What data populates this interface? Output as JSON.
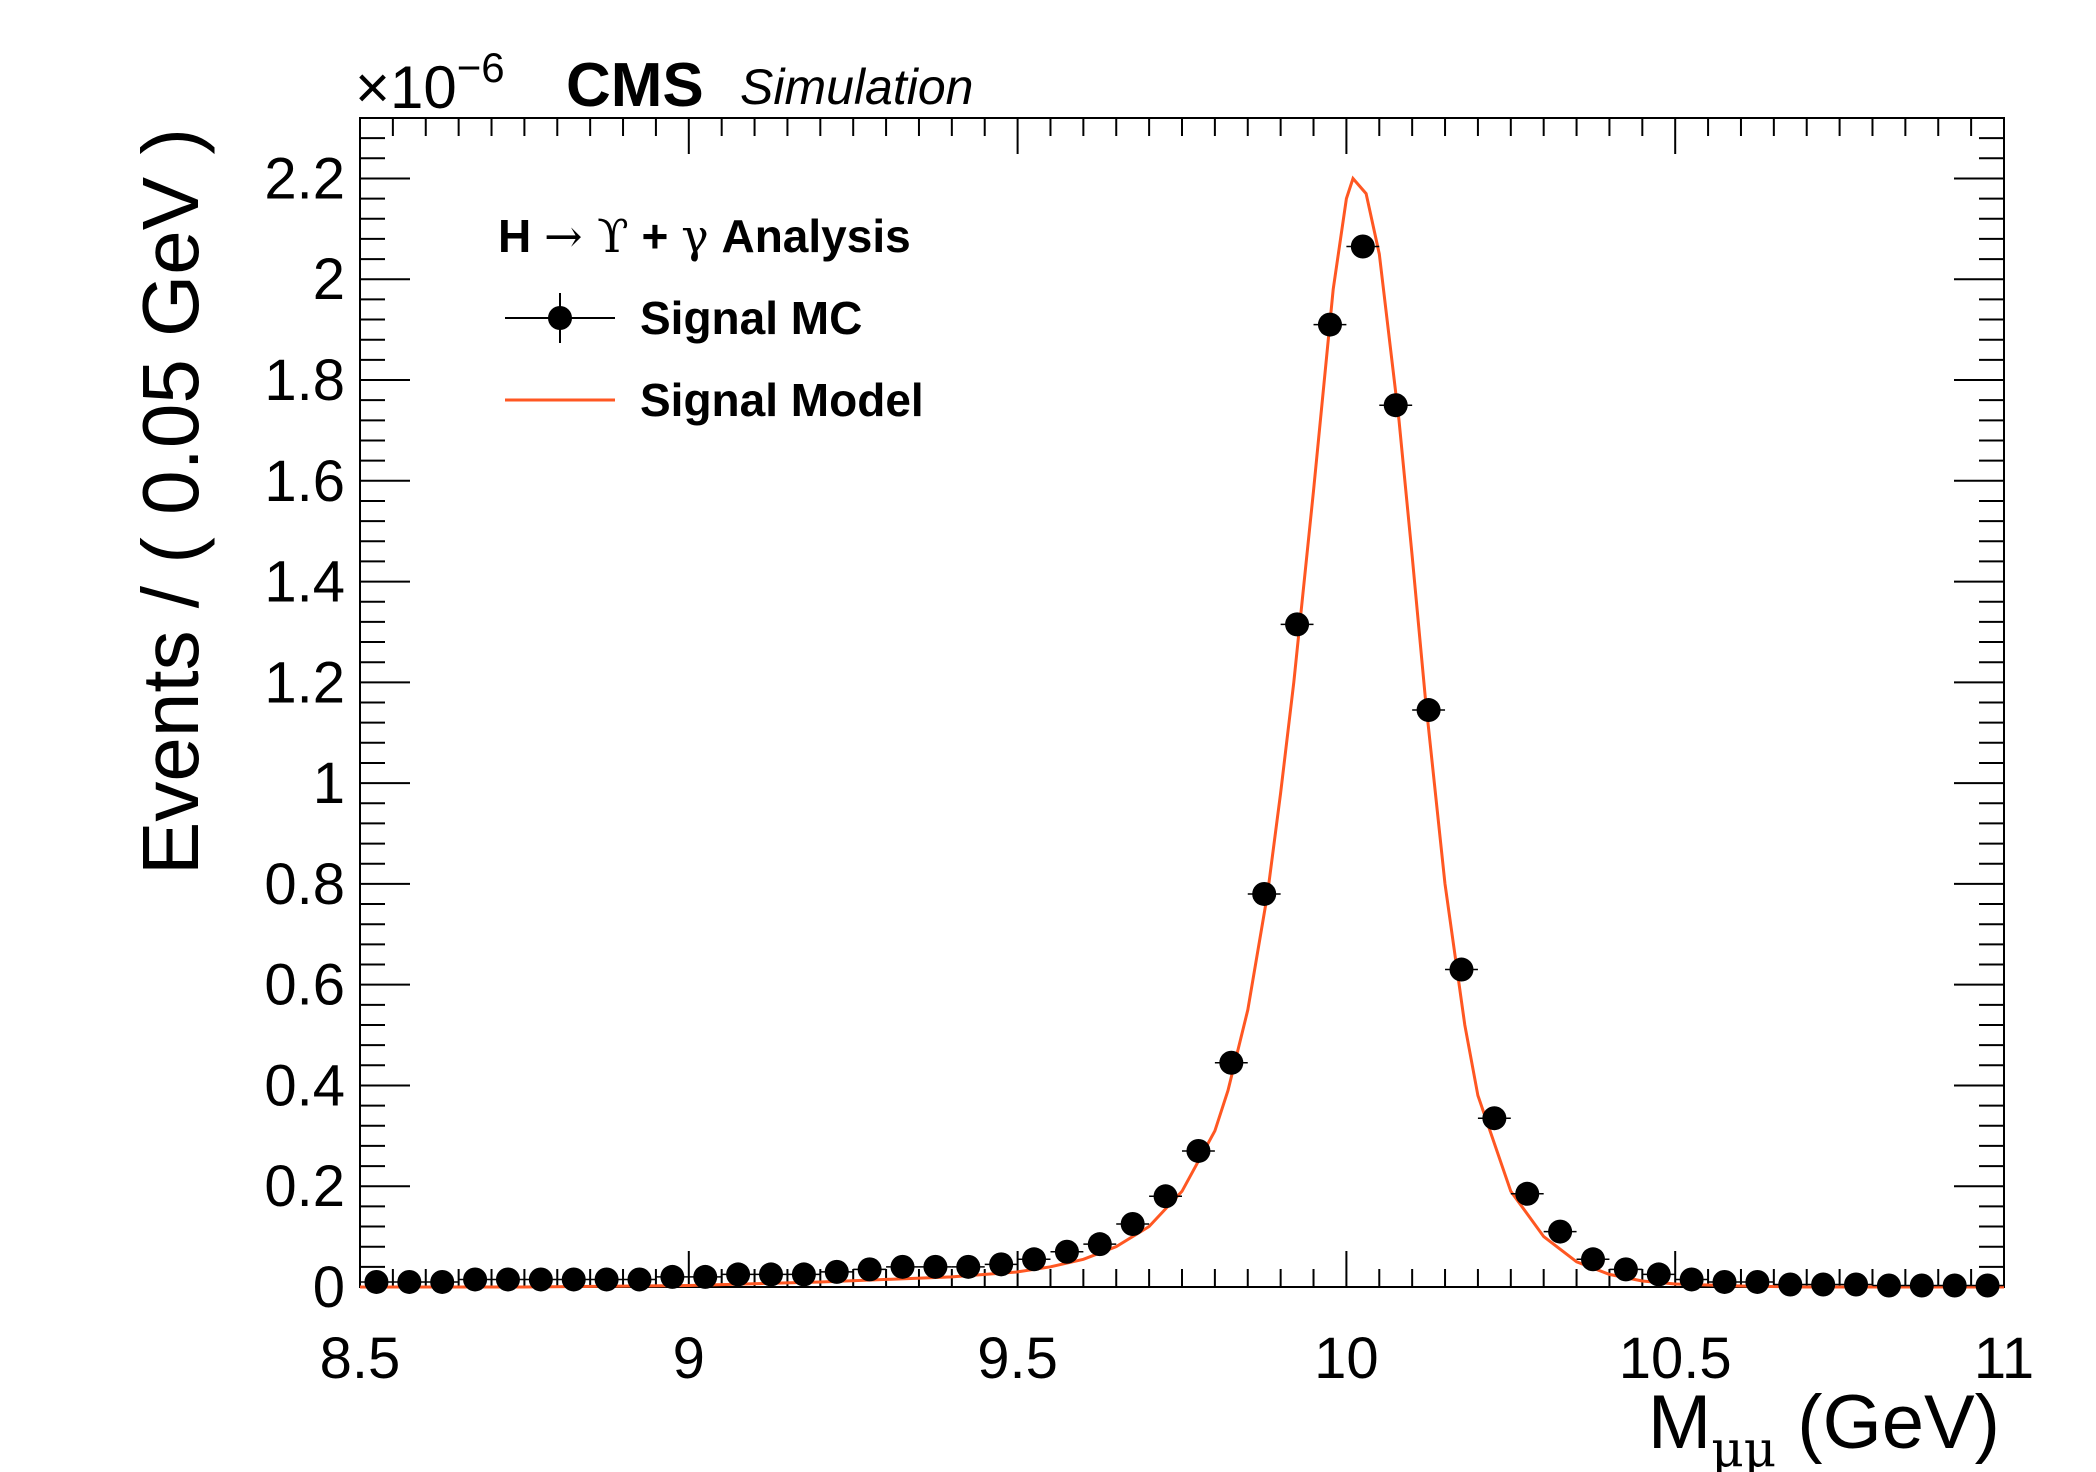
{
  "labels": {
    "cms": "CMS",
    "simulation": "Simulation",
    "exponent_mult": "×10",
    "exponent_pow": "−6"
  },
  "chart_data": {
    "type": "scatter",
    "xlabel_main": "M",
    "xlabel_sub": "μμ",
    "xlabel_unit": " (GeV)",
    "ylabel": "Events / ( 0.05 GeV )",
    "xlim": [
      8.5,
      11.0
    ],
    "ylim": [
      0,
      2.32
    ],
    "y_scale_factor": "1e-6",
    "grid": false,
    "legend_position": "top-left",
    "x_ticks": [
      8.5,
      9,
      9.5,
      10,
      10.5,
      11
    ],
    "x_tick_labels": [
      "8.5",
      "9",
      "9.5",
      "10",
      "10.5",
      "11"
    ],
    "y_ticks": [
      0,
      0.2,
      0.4,
      0.6,
      0.8,
      1,
      1.2,
      1.4,
      1.6,
      1.8,
      2,
      2.2
    ],
    "y_tick_labels": [
      "0",
      "0.2",
      "0.4",
      "0.6",
      "0.8",
      "1",
      "1.2",
      "1.4",
      "1.6",
      "1.8",
      "2",
      "2.2"
    ],
    "legend": {
      "header_parts": [
        "H ",
        "→",
        " ϒ",
        " + ",
        "γ",
        " Analysis"
      ],
      "entries": [
        "Signal MC",
        "Signal Model"
      ]
    },
    "series": [
      {
        "name": "Signal MC",
        "kind": "points",
        "color": "#000000",
        "x": [
          8.525,
          8.575,
          8.625,
          8.675,
          8.725,
          8.775,
          8.825,
          8.875,
          8.925,
          8.975,
          9.025,
          9.075,
          9.125,
          9.175,
          9.225,
          9.275,
          9.325,
          9.375,
          9.425,
          9.475,
          9.525,
          9.575,
          9.625,
          9.675,
          9.725,
          9.775,
          9.825,
          9.875,
          9.925,
          9.975,
          10.025,
          10.075,
          10.125,
          10.175,
          10.225,
          10.275,
          10.325,
          10.375,
          10.425,
          10.475,
          10.525,
          10.575,
          10.625,
          10.675,
          10.725,
          10.775,
          10.825,
          10.875,
          10.925,
          10.975
        ],
        "y": [
          0.01,
          0.01,
          0.01,
          0.015,
          0.015,
          0.015,
          0.015,
          0.015,
          0.015,
          0.02,
          0.02,
          0.025,
          0.025,
          0.025,
          0.03,
          0.035,
          0.04,
          0.04,
          0.04,
          0.045,
          0.055,
          0.07,
          0.085,
          0.125,
          0.18,
          0.27,
          0.445,
          0.78,
          1.315,
          1.91,
          2.065,
          1.75,
          1.145,
          0.63,
          0.335,
          0.185,
          0.11,
          0.055,
          0.035,
          0.025,
          0.015,
          0.01,
          0.01,
          0.005,
          0.005,
          0.005,
          0.003,
          0.003,
          0.003,
          0.003
        ]
      },
      {
        "name": "Signal Model",
        "kind": "line",
        "color": "#ff5722",
        "peak_x": 10.01,
        "peak_y": 2.2,
        "x": [
          8.5,
          8.75,
          9.0,
          9.2,
          9.4,
          9.5,
          9.55,
          9.6,
          9.65,
          9.7,
          9.75,
          9.8,
          9.82,
          9.85,
          9.88,
          9.9,
          9.92,
          9.95,
          9.98,
          10.0,
          10.01,
          10.03,
          10.05,
          10.08,
          10.1,
          10.12,
          10.15,
          10.18,
          10.2,
          10.25,
          10.3,
          10.35,
          10.4,
          10.45,
          10.5,
          10.6,
          10.7,
          11.0
        ],
        "y": [
          0.0,
          0.0,
          0.003,
          0.01,
          0.02,
          0.03,
          0.04,
          0.055,
          0.08,
          0.12,
          0.19,
          0.31,
          0.39,
          0.55,
          0.78,
          0.98,
          1.2,
          1.58,
          1.98,
          2.16,
          2.2,
          2.17,
          2.05,
          1.72,
          1.45,
          1.17,
          0.8,
          0.52,
          0.38,
          0.19,
          0.1,
          0.05,
          0.025,
          0.012,
          0.006,
          0.002,
          0.0,
          0.0
        ]
      }
    ]
  }
}
